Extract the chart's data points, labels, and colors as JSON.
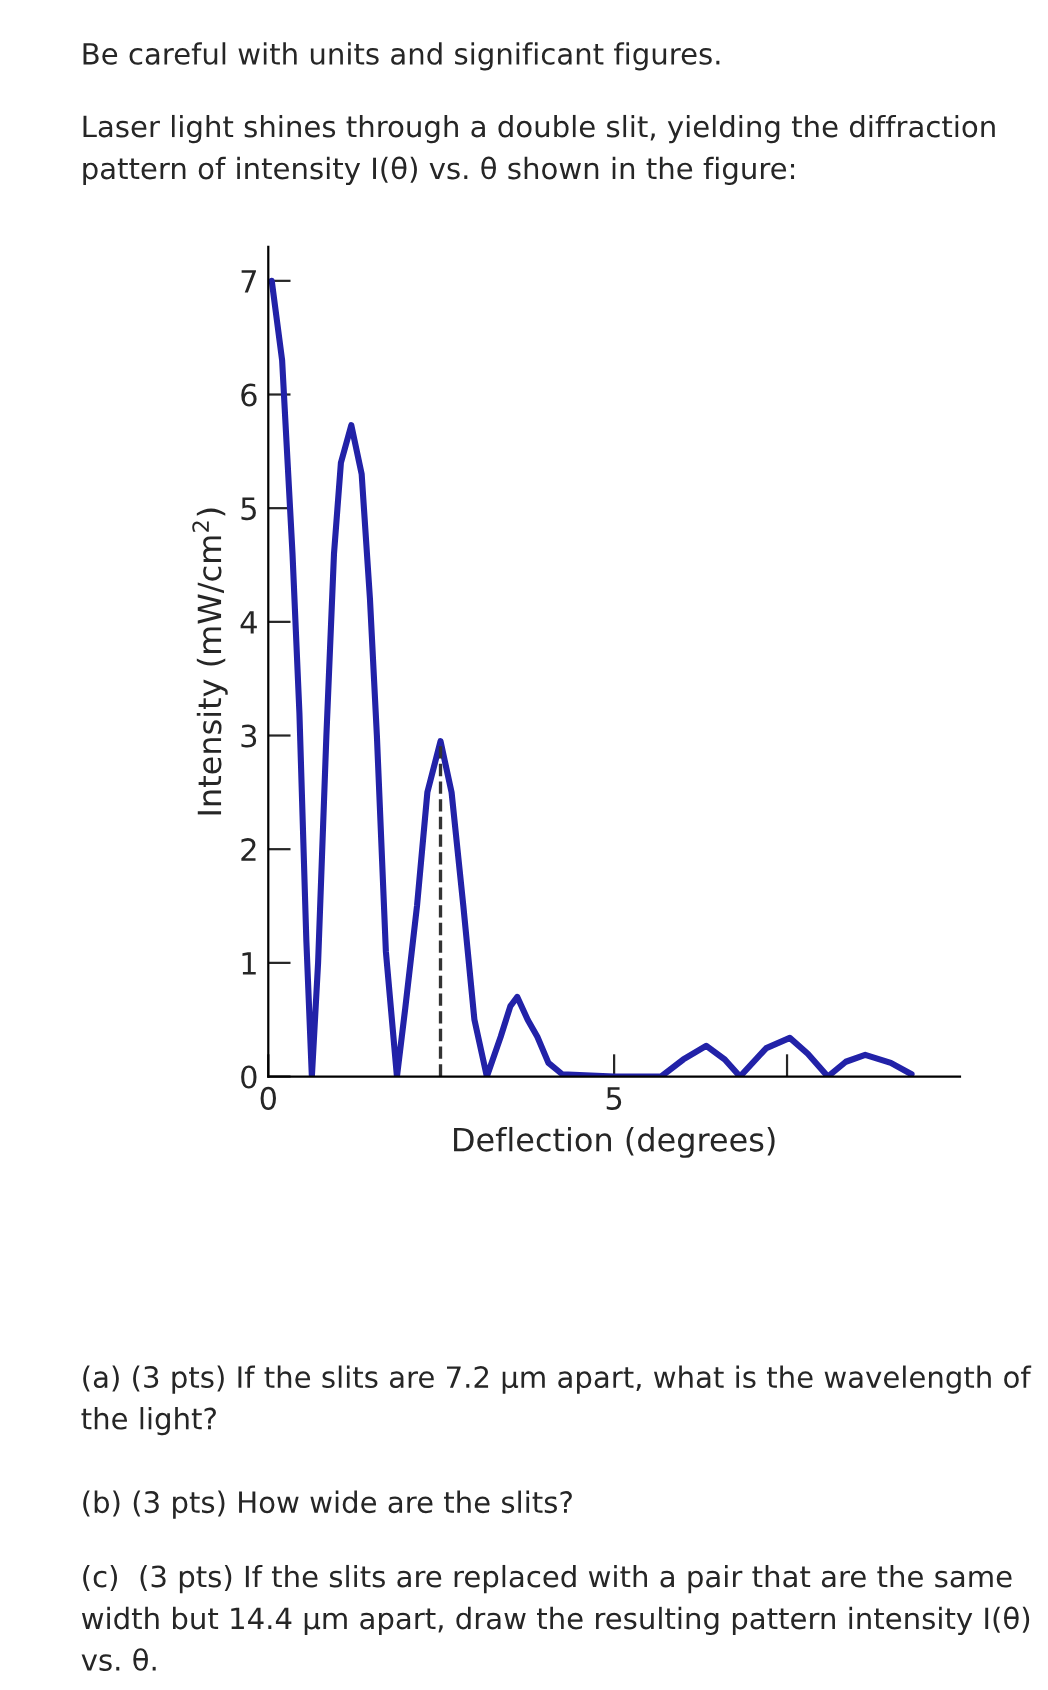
{
  "chart_data": {
    "type": "line",
    "xlabel": "Deflection (degrees)",
    "ylabel": "Intensity (mW/cm$^{2}$)",
    "annotations": [
      "Be careful with units and significant figures.",
      "Laser light shines through a double slit, yielding the diffraction pattern of intensity I(θ) vs. θ shown in the figure:",
      "(a) (3 pts) If the slits are 7.2 µm apart, what is the wavelength of the light?",
      "(b) (3 pts) How wide are the slits?",
      "(c)  (3 pts) If the slits are replaced with a pair that are the same width but 14.4 µm apart, draw the resulting pattern intensity I(θ) vs. θ."
    ],
    "series": [
      {
        "color": "#2222a8",
        "x": [
          0.05,
          0.2,
          0.35,
          0.45,
          0.55,
          0.63,
          0.72,
          0.84,
          0.95,
          1.05,
          1.2,
          1.35,
          1.47,
          1.57,
          1.7,
          1.86,
          1.98,
          2.15,
          2.3,
          2.49,
          2.65,
          2.82,
          2.98,
          3.16,
          3.36,
          3.5,
          3.6,
          3.75,
          3.89,
          4.05,
          4.25,
          5.0,
          5.68,
          6.0,
          6.33,
          6.6,
          6.82,
          7.2,
          7.54,
          7.8,
          8.09,
          8.35,
          8.63,
          9.0,
          9.3
        ],
        "values": [
          7.0,
          6.3,
          4.6,
          3.2,
          1.2,
          0,
          1.0,
          3.0,
          4.6,
          5.4,
          5.73,
          5.3,
          4.2,
          3.0,
          1.1,
          0,
          0.6,
          1.5,
          2.5,
          2.95,
          2.5,
          1.5,
          0.5,
          0,
          0.35,
          0.62,
          0.7,
          0.5,
          0.35,
          0.12,
          0.02,
          0,
          0,
          0.15,
          0.27,
          0.15,
          0,
          0.25,
          0.34,
          0.2,
          0,
          0.13,
          0.19,
          0.12,
          0.02
        ]
      }
    ],
    "ref_lines": [
      {
        "axis": "x",
        "value": 2.49,
        "color": "#333333",
        "line_style": "dashed"
      }
    ],
    "xlim": [
      0,
      10
    ],
    "ylim": [
      0,
      7.3
    ],
    "xticks": [
      0,
      5,
      {
        "value": 7.5,
        "label": null
      }
    ],
    "yticks": [
      0,
      1,
      2,
      3,
      4,
      5,
      6,
      7
    ],
    "grid": false,
    "legend": false,
    "marker": "none",
    "line_style": "solid"
  }
}
